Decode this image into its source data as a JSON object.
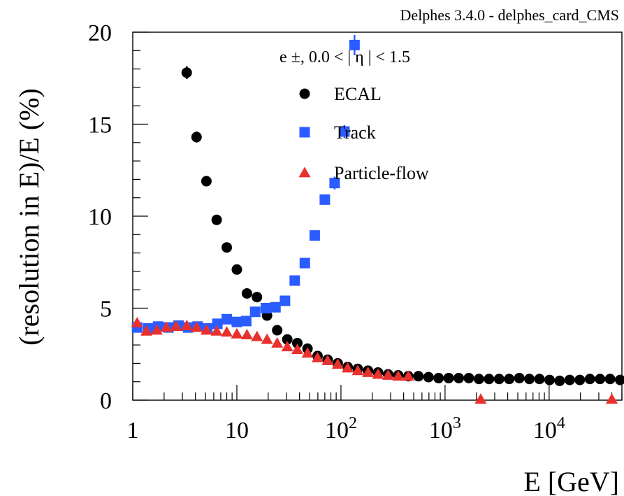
{
  "chart_data": {
    "type": "scatter",
    "banner": "Delphes 3.4.0 - delphes_card_CMS",
    "legend_header": "e ±, 0.0 < | η | < 1.5",
    "xlabel": "E [GeV]",
    "ylabel": "(resolution in E)/E (%)",
    "xscale": "log",
    "xlim": [
      1,
      50000
    ],
    "ylim": [
      0,
      20
    ],
    "grid": false,
    "legend_position": "top-right",
    "yticks": [
      {
        "value": 0,
        "label": "0"
      },
      {
        "value": 5,
        "label": "5"
      },
      {
        "value": 10,
        "label": "10"
      },
      {
        "value": 15,
        "label": "15"
      },
      {
        "value": 20,
        "label": "20"
      }
    ],
    "xticks": [
      {
        "value": 1,
        "base": "1",
        "exp": ""
      },
      {
        "value": 10,
        "base": "10",
        "exp": ""
      },
      {
        "value": 100,
        "base": "10",
        "exp": "2"
      },
      {
        "value": 1000,
        "base": "10",
        "exp": "3"
      },
      {
        "value": 10000,
        "base": "10",
        "exp": "4"
      }
    ],
    "series": [
      {
        "name": "ECAL",
        "marker": "circle",
        "color": "#000000",
        "x": [
          3.3,
          4.1,
          5.1,
          6.4,
          8.0,
          10.0,
          12.5,
          15.6,
          19.5,
          24.4,
          30.5,
          38.1,
          47.7,
          59.6,
          74.5,
          93.1,
          116,
          145,
          182,
          227,
          284,
          355,
          444,
          555,
          694,
          867,
          1084,
          1355,
          1693,
          2117,
          2646,
          3307,
          4134,
          5168,
          6460,
          8075,
          10093,
          12617,
          15771,
          19714,
          24642,
          30803,
          38503,
          48129
        ],
        "y": [
          17.8,
          14.3,
          11.9,
          9.8,
          8.3,
          7.1,
          5.8,
          5.6,
          4.6,
          3.8,
          3.3,
          3.1,
          2.8,
          2.4,
          2.2,
          2.0,
          1.8,
          1.7,
          1.6,
          1.5,
          1.4,
          1.35,
          1.3,
          1.3,
          1.25,
          1.2,
          1.2,
          1.2,
          1.2,
          1.15,
          1.15,
          1.15,
          1.15,
          1.2,
          1.15,
          1.15,
          1.1,
          1.05,
          1.1,
          1.1,
          1.15,
          1.15,
          1.15,
          1.1
        ],
        "err": [
          0.35,
          0.3,
          0.25,
          0,
          0,
          0,
          0,
          0,
          0,
          0,
          0,
          0,
          0,
          0,
          0,
          0,
          0,
          0,
          0,
          0,
          0,
          0,
          0,
          0,
          0,
          0,
          0,
          0,
          0,
          0,
          0,
          0,
          0,
          0,
          0,
          0,
          0,
          0,
          0,
          0,
          0,
          0,
          0,
          0
        ]
      },
      {
        "name": "Track",
        "marker": "square",
        "color": "#2b5cff",
        "x": [
          1.1,
          1.4,
          1.75,
          2.2,
          2.75,
          3.4,
          4.2,
          5.2,
          6.5,
          8.0,
          10.0,
          12.3,
          15.0,
          19.0,
          23.5,
          29,
          36,
          45,
          56,
          70,
          87,
          108,
          135
        ],
        "y": [
          3.95,
          3.9,
          4.0,
          3.95,
          4.05,
          3.95,
          4.0,
          3.9,
          4.15,
          4.4,
          4.25,
          4.3,
          4.8,
          5.0,
          5.05,
          5.4,
          6.5,
          7.45,
          8.95,
          10.9,
          11.8,
          14.6,
          19.3
        ],
        "err": [
          0,
          0,
          0,
          0,
          0,
          0,
          0,
          0,
          0,
          0,
          0,
          0,
          0,
          0,
          0,
          0,
          0,
          0,
          0,
          0,
          0.35,
          0.35,
          0.55
        ]
      },
      {
        "name": "Particle-flow",
        "marker": "triangle",
        "color": "#e8312d",
        "x": [
          1.1,
          1.35,
          1.7,
          2.1,
          2.6,
          3.3,
          4.1,
          5.1,
          6.4,
          8.0,
          10.0,
          12.5,
          15.6,
          19.5,
          24.4,
          30.5,
          38.1,
          47.7,
          59.6,
          74.5,
          93.1,
          116,
          145,
          182,
          227,
          284,
          355,
          444,
          2200,
          40000
        ],
        "y": [
          4.2,
          3.75,
          3.8,
          3.95,
          4.0,
          4.05,
          3.95,
          3.8,
          3.75,
          3.7,
          3.6,
          3.55,
          3.45,
          3.3,
          3.1,
          2.9,
          2.75,
          2.55,
          2.3,
          2.15,
          1.95,
          1.75,
          1.6,
          1.5,
          1.4,
          1.35,
          1.3,
          1.3,
          0.05,
          0.05
        ],
        "err": [
          0,
          0,
          0,
          0,
          0,
          0,
          0,
          0,
          0,
          0,
          0,
          0,
          0,
          0,
          0,
          0,
          0,
          0,
          0,
          0,
          0,
          0,
          0,
          0,
          0,
          0,
          0,
          0,
          0,
          0
        ]
      }
    ]
  }
}
